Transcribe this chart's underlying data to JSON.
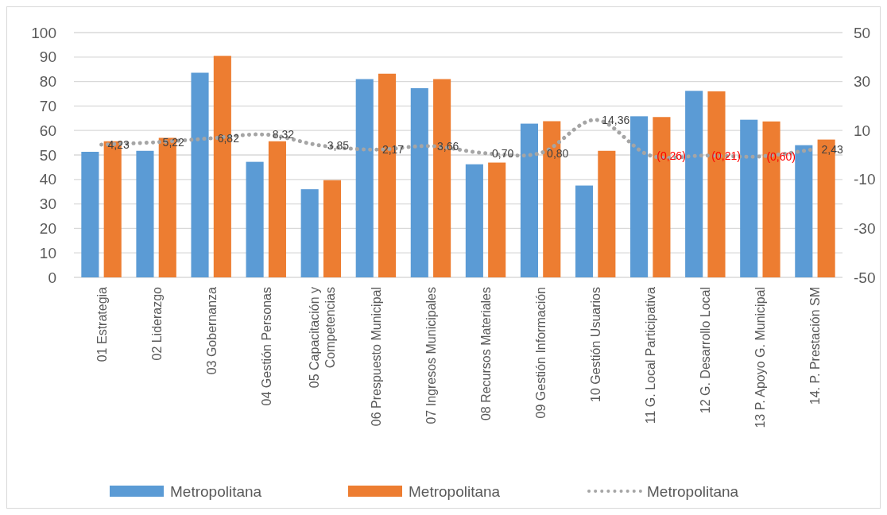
{
  "chart_data": {
    "type": "bar",
    "categories": [
      "01 Estrategia",
      "02 Liderazgo",
      "03 Gobernanza",
      "04 Gestión Personas",
      "05 Capacitación y Competencias",
      "06 Prespuesto Municipal",
      "07 Ingresos Municipales",
      "08 Recursos Materiales",
      "09 Gestión Información",
      "10 Gestión Usuarios",
      "11 G. Local Participativa",
      "12 G. Desarrollo Local",
      "13 P. Apoyo G. Municipal",
      "14. P. Prestación SM"
    ],
    "series": [
      {
        "name": "Metropolitana",
        "color": "#5b9bd5",
        "values": [
          51.3,
          51.7,
          83.6,
          47.2,
          36.0,
          81.0,
          77.3,
          46.2,
          62.8,
          37.5,
          65.8,
          76.2,
          64.4,
          54.0
        ]
      },
      {
        "name": "Metropolitana",
        "color": "#ed7d31",
        "values": [
          55.6,
          57.0,
          90.5,
          55.6,
          39.7,
          83.2,
          81.0,
          46.9,
          63.8,
          51.7,
          65.5,
          76.0,
          63.7,
          56.3
        ]
      },
      {
        "name": "Metropolitana",
        "type": "line",
        "axis": "y2",
        "color": "#a5a5a5",
        "line_style": "dotted",
        "values": [
          4.23,
          5.22,
          6.82,
          8.32,
          3.85,
          2.17,
          3.66,
          0.7,
          0.8,
          14.36,
          -0.26,
          -0.21,
          -0.6,
          2.43
        ],
        "value_labels": [
          "4,23",
          "5,22",
          "6,82",
          "8,32",
          "3,85",
          "2,17",
          "3,66",
          "0,70",
          "0,80",
          "14,36",
          "(0,26)",
          "(0,21)",
          "(0,60)",
          "2,43"
        ]
      }
    ],
    "ylim": [
      0,
      100
    ],
    "yticks": [
      0,
      10,
      20,
      30,
      40,
      50,
      60,
      70,
      80,
      90,
      100
    ],
    "y2lim": [
      -50,
      50
    ],
    "y2ticks": [
      -50,
      -30,
      -10,
      10,
      30,
      50
    ],
    "grid": "y",
    "legend": "bottom",
    "marker": "none"
  }
}
